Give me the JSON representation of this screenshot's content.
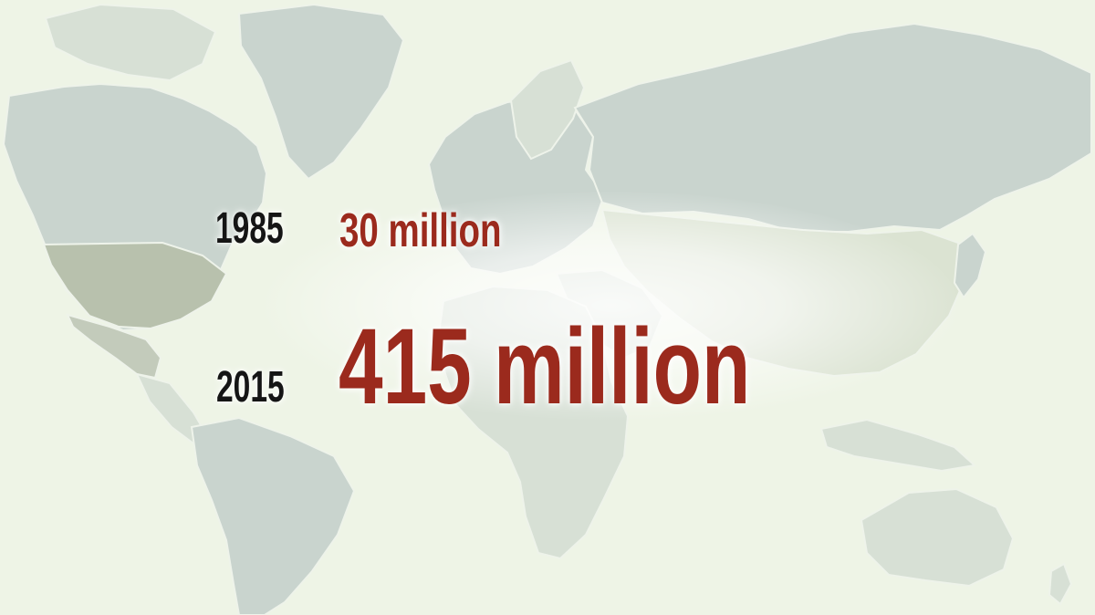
{
  "stats": [
    {
      "year": "1985",
      "value": "30 million"
    },
    {
      "year": "2015",
      "value": "415 million"
    }
  ],
  "colors": {
    "background": "#eef4e6",
    "land": "#c9d4ce",
    "year_text": "#151515",
    "value_text": "#9b2a1d"
  }
}
